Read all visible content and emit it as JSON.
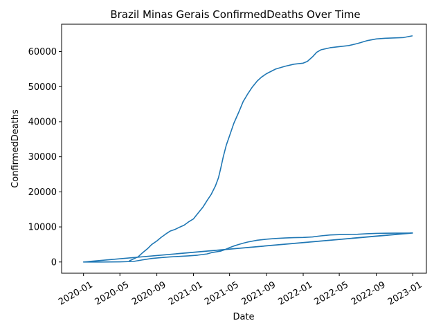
{
  "chart_data": {
    "type": "line",
    "title": "Brazil Minas Gerais ConfirmedDeaths Over Time",
    "xlabel": "Date",
    "ylabel": "ConfirmedDeaths",
    "xlim": [
      "2019-10-20",
      "2023-02-15"
    ],
    "ylim": [
      -3200,
      67800
    ],
    "x_ticks": [
      "2020-01",
      "2020-05",
      "2020-09",
      "2021-01",
      "2021-05",
      "2021-09",
      "2022-01",
      "2022-05",
      "2022-09",
      "2023-01"
    ],
    "y_ticks": [
      0,
      10000,
      20000,
      30000,
      40000,
      50000,
      60000
    ],
    "grid": false,
    "line_color": "#1f77b4",
    "series": [
      {
        "points": [
          [
            "2020-01-01",
            0
          ],
          [
            "2020-03-01",
            0
          ],
          [
            "2020-05-01",
            50
          ],
          [
            "2020-06-15",
            150
          ],
          [
            "2020-07-15",
            600
          ],
          [
            "2020-08-15",
            1000
          ],
          [
            "2020-09-15",
            1250
          ],
          [
            "2020-10-15",
            1450
          ],
          [
            "2020-11-15",
            1600
          ],
          [
            "2020-12-15",
            1750
          ],
          [
            "2021-01-15",
            1950
          ],
          [
            "2021-02-15",
            2300
          ],
          [
            "2021-03-01",
            2650
          ],
          [
            "2021-04-01",
            3100
          ],
          [
            "2021-04-15",
            3500
          ],
          [
            "2021-05-01",
            4100
          ],
          [
            "2021-05-15",
            4550
          ],
          [
            "2021-06-01",
            5000
          ],
          [
            "2021-06-15",
            5350
          ],
          [
            "2021-07-01",
            5700
          ],
          [
            "2021-08-01",
            6200
          ],
          [
            "2021-09-01",
            6500
          ],
          [
            "2021-10-01",
            6700
          ],
          [
            "2021-11-01",
            6850
          ],
          [
            "2021-12-01",
            6950
          ],
          [
            "2022-01-01",
            7000
          ],
          [
            "2022-02-01",
            7150
          ],
          [
            "2022-03-01",
            7450
          ],
          [
            "2022-04-01",
            7700
          ],
          [
            "2022-05-01",
            7800
          ],
          [
            "2022-06-01",
            7850
          ],
          [
            "2022-07-01",
            7900
          ],
          [
            "2022-08-01",
            8050
          ],
          [
            "2022-09-01",
            8150
          ],
          [
            "2022-10-01",
            8200
          ],
          [
            "2022-11-01",
            8220
          ],
          [
            "2022-12-01",
            8230
          ],
          [
            "2022-12-31",
            8250
          ],
          [
            "2020-01-01",
            0
          ],
          [
            "2022-12-31",
            8300
          ]
        ]
      },
      {
        "points": [
          [
            "2020-06-01",
            300
          ],
          [
            "2020-07-01",
            1500
          ],
          [
            "2020-07-15",
            2600
          ],
          [
            "2020-08-01",
            3800
          ],
          [
            "2020-08-15",
            5000
          ],
          [
            "2020-09-01",
            6000
          ],
          [
            "2020-09-15",
            7000
          ],
          [
            "2020-10-01",
            8000
          ],
          [
            "2020-10-15",
            8800
          ],
          [
            "2020-11-01",
            9300
          ],
          [
            "2020-11-15",
            9900
          ],
          [
            "2020-12-01",
            10500
          ],
          [
            "2020-12-15",
            11400
          ],
          [
            "2021-01-01",
            12300
          ],
          [
            "2021-01-15",
            13800
          ],
          [
            "2021-02-01",
            15600
          ],
          [
            "2021-02-15",
            17500
          ],
          [
            "2021-03-01",
            19300
          ],
          [
            "2021-03-15",
            21700
          ],
          [
            "2021-03-25",
            24000
          ],
          [
            "2021-04-01",
            26500
          ],
          [
            "2021-04-10",
            30000
          ],
          [
            "2021-04-20",
            33300
          ],
          [
            "2021-05-01",
            36000
          ],
          [
            "2021-05-15",
            39500
          ],
          [
            "2021-06-01",
            42800
          ],
          [
            "2021-06-15",
            45700
          ],
          [
            "2021-07-01",
            48000
          ],
          [
            "2021-07-15",
            49800
          ],
          [
            "2021-08-01",
            51600
          ],
          [
            "2021-08-15",
            52700
          ],
          [
            "2021-09-01",
            53700
          ],
          [
            "2021-10-01",
            55000
          ],
          [
            "2021-11-01",
            55800
          ],
          [
            "2021-12-01",
            56400
          ],
          [
            "2022-01-01",
            56700
          ],
          [
            "2022-01-15",
            57200
          ],
          [
            "2022-02-01",
            58500
          ],
          [
            "2022-02-15",
            59800
          ],
          [
            "2022-03-01",
            60500
          ],
          [
            "2022-04-01",
            61100
          ],
          [
            "2022-05-01",
            61400
          ],
          [
            "2022-06-01",
            61700
          ],
          [
            "2022-07-01",
            62300
          ],
          [
            "2022-08-01",
            63100
          ],
          [
            "2022-09-01",
            63600
          ],
          [
            "2022-10-01",
            63800
          ],
          [
            "2022-11-01",
            63900
          ],
          [
            "2022-12-01",
            64000
          ],
          [
            "2022-12-31",
            64500
          ]
        ]
      }
    ]
  }
}
